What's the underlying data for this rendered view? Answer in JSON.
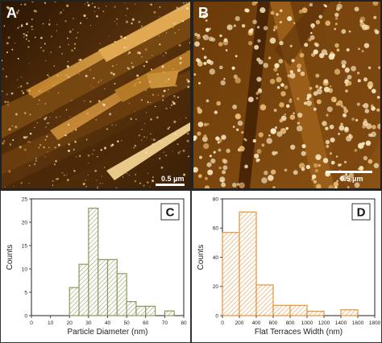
{
  "panels": {
    "a": {
      "letter": "A",
      "scale": "0.5 μm"
    },
    "b": {
      "letter": "B",
      "scale": "0.5 μm"
    }
  },
  "colors": {
    "afm_dark": "#3a1f06",
    "afm_mid": "#8a5a16",
    "afm_light": "#e8c98a",
    "hist_c": "#8a9a5b",
    "hist_d": "#e8923a"
  },
  "chart_data": [
    {
      "type": "bar",
      "panel_letter": "C",
      "title": "",
      "xlabel": "Particle Diameter (nm)",
      "ylabel": "Counts",
      "xlim": [
        0,
        80
      ],
      "ylim": [
        0,
        25
      ],
      "x_ticks": [
        "0",
        "10",
        "20",
        "30",
        "40",
        "50",
        "60",
        "70",
        "80"
      ],
      "y_ticks": [
        "0",
        "5",
        "10",
        "15",
        "20",
        "25"
      ],
      "bin_width": 5,
      "bin_starts": [
        20,
        25,
        30,
        35,
        40,
        45,
        50,
        55,
        60,
        65,
        70
      ],
      "values": [
        6,
        11,
        23,
        12,
        12,
        9,
        3,
        2,
        2,
        0,
        1
      ]
    },
    {
      "type": "bar",
      "panel_letter": "D",
      "title": "",
      "xlabel": "Flat Terraces Width (nm)",
      "ylabel": "Counts",
      "xlim": [
        0,
        1800
      ],
      "ylim": [
        0,
        80
      ],
      "x_ticks": [
        "0",
        "200",
        "400",
        "600",
        "800",
        "1000",
        "1200",
        "1400",
        "1600",
        "1800"
      ],
      "y_ticks": [
        "0",
        "20",
        "40",
        "60",
        "80"
      ],
      "bin_width": 200,
      "bin_starts": [
        0,
        200,
        400,
        600,
        800,
        1000,
        1200,
        1400
      ],
      "values": [
        57,
        71,
        21,
        7,
        7,
        3,
        0,
        4
      ]
    }
  ]
}
